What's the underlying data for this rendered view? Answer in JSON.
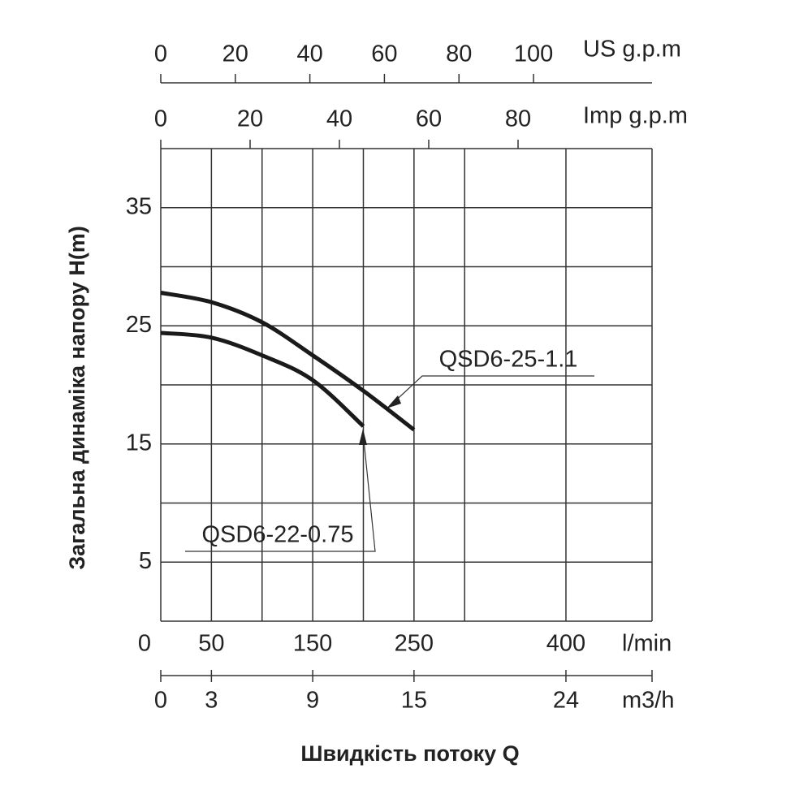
{
  "chart_data": {
    "type": "line",
    "x": [
      0,
      50,
      100,
      150,
      200,
      250
    ],
    "series": [
      {
        "name": "QSD6-25-1.1",
        "color": "#1a1a1a",
        "values": [
          27.8,
          27,
          25.3,
          22.5,
          19.5,
          16.2
        ]
      },
      {
        "name": "QSD6-22-0.75",
        "color": "#1a1a1a",
        "values": [
          24.4,
          24,
          22.5,
          20.4,
          16.5,
          null
        ]
      }
    ],
    "ylabel": "Загальна динаміка напору H(m)",
    "xtitle": "Швидкість потоку Q",
    "ylim": [
      0,
      40
    ],
    "yticks": [
      5,
      15,
      25,
      35
    ],
    "ygrid": [
      0,
      5,
      10,
      15,
      20,
      25,
      30,
      35,
      40
    ],
    "xlabel": "l/min",
    "xlim": [
      0,
      485
    ],
    "xticks": [
      0,
      50,
      150,
      250,
      400
    ],
    "xgrid": [
      50,
      100,
      150,
      200,
      250,
      300,
      400,
      485
    ],
    "m3h_axis": {
      "label": "m3/h",
      "xlim": [
        0,
        29.1
      ],
      "xticks": [
        0,
        3,
        9,
        15,
        24
      ]
    },
    "us_axis": {
      "label": "US g.p.m",
      "xlim": [
        0,
        131.8
      ],
      "xticks": [
        0,
        20,
        40,
        60,
        80,
        100
      ]
    },
    "imp_axis": {
      "label": "Imp g.p.m",
      "xlim": [
        0,
        110
      ],
      "xticks": [
        0,
        20,
        40,
        60,
        80
      ]
    },
    "grid": true
  }
}
